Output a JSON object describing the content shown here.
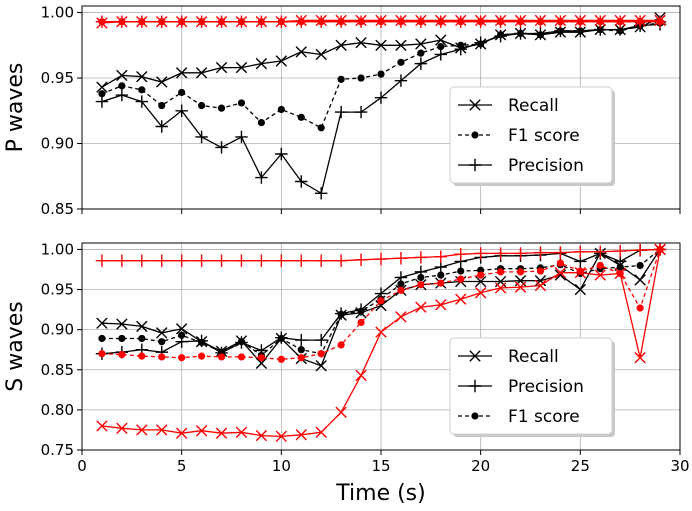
{
  "chart_data": [
    {
      "type": "line",
      "panel": "top",
      "ylabel": "P waves",
      "xlabel": "",
      "xlim": [
        0,
        30
      ],
      "ylim": [
        0.85,
        1.005
      ],
      "xticks": [
        0,
        5,
        10,
        15,
        20,
        25,
        30
      ],
      "xtick_labels_visible": false,
      "yticks": [
        0.85,
        0.9,
        0.95,
        1.0
      ],
      "ytick_labels": [
        "0.85",
        "0.90",
        "0.95",
        "1.00"
      ],
      "grid": true,
      "legend_position": "center-right",
      "legend": [
        {
          "label": "Recall",
          "marker": "x",
          "dash": "solid"
        },
        {
          "label": "F1 score",
          "marker": "dot",
          "dash": "dashed"
        },
        {
          "label": "Precision",
          "marker": "plus",
          "dash": "solid"
        }
      ],
      "x": [
        1,
        2,
        3,
        4,
        5,
        6,
        7,
        8,
        9,
        10,
        11,
        12,
        13,
        14,
        15,
        16,
        17,
        18,
        19,
        20,
        21,
        22,
        23,
        24,
        25,
        26,
        27,
        28,
        29
      ],
      "series": [
        {
          "name": "Recall",
          "color": "#000000",
          "marker": "x",
          "dash": "solid",
          "values": [
            0.943,
            0.952,
            0.951,
            0.947,
            0.954,
            0.954,
            0.958,
            0.958,
            0.961,
            0.963,
            0.97,
            0.968,
            0.975,
            0.977,
            0.975,
            0.975,
            0.976,
            0.979,
            0.973,
            0.976,
            0.983,
            0.984,
            0.983,
            0.985,
            0.985,
            0.987,
            0.987,
            0.989,
            0.996
          ]
        },
        {
          "name": "F1 score",
          "color": "#000000",
          "marker": "dot",
          "dash": "dashed",
          "values": [
            0.938,
            0.944,
            0.941,
            0.929,
            0.939,
            0.929,
            0.927,
            0.931,
            0.916,
            0.926,
            0.92,
            0.912,
            0.949,
            0.95,
            0.953,
            0.962,
            0.969,
            0.974,
            0.975,
            0.976,
            0.983,
            0.984,
            0.983,
            0.986,
            0.986,
            0.987,
            0.986,
            0.99,
            0.992
          ]
        },
        {
          "name": "Precision",
          "color": "#000000",
          "marker": "plus",
          "dash": "solid",
          "values": [
            0.932,
            0.937,
            0.932,
            0.913,
            0.925,
            0.905,
            0.897,
            0.905,
            0.874,
            0.892,
            0.871,
            0.862,
            0.924,
            0.924,
            0.935,
            0.948,
            0.961,
            0.968,
            0.972,
            0.977,
            0.982,
            0.984,
            0.984,
            0.986,
            0.986,
            0.987,
            0.987,
            0.99,
            0.991
          ]
        },
        {
          "name": "Recall (red)",
          "color": "#ff0000",
          "marker": "x",
          "dash": "solid",
          "values": [
            0.992,
            0.993,
            0.993,
            0.993,
            0.993,
            0.993,
            0.993,
            0.993,
            0.993,
            0.993,
            0.994,
            0.994,
            0.994,
            0.994,
            0.994,
            0.994,
            0.994,
            0.994,
            0.994,
            0.994,
            0.994,
            0.994,
            0.994,
            0.994,
            0.994,
            0.994,
            0.994,
            0.994,
            0.994
          ]
        },
        {
          "name": "F1 score (red)",
          "color": "#ff0000",
          "marker": "dot",
          "dash": "dashed",
          "values": [
            0.993,
            0.993,
            0.993,
            0.993,
            0.993,
            0.993,
            0.993,
            0.993,
            0.993,
            0.993,
            0.993,
            0.993,
            0.993,
            0.993,
            0.993,
            0.993,
            0.993,
            0.993,
            0.993,
            0.993,
            0.993,
            0.993,
            0.993,
            0.993,
            0.993,
            0.993,
            0.993,
            0.993,
            0.993
          ]
        },
        {
          "name": "Precision (red)",
          "color": "#ff0000",
          "marker": "plus",
          "dash": "solid",
          "values": [
            0.993,
            0.993,
            0.993,
            0.993,
            0.993,
            0.993,
            0.993,
            0.993,
            0.993,
            0.993,
            0.993,
            0.993,
            0.993,
            0.993,
            0.993,
            0.993,
            0.993,
            0.993,
            0.993,
            0.993,
            0.993,
            0.993,
            0.993,
            0.993,
            0.993,
            0.993,
            0.993,
            0.993,
            0.993
          ]
        }
      ]
    },
    {
      "type": "line",
      "panel": "bottom",
      "ylabel": "S waves",
      "xlabel": "Time (s)",
      "xlim": [
        0,
        30
      ],
      "ylim": [
        0.75,
        1.008
      ],
      "xticks": [
        0,
        5,
        10,
        15,
        20,
        25,
        30
      ],
      "xtick_labels": [
        "0",
        "5",
        "10",
        "15",
        "20",
        "25",
        "30"
      ],
      "xtick_labels_visible": true,
      "yticks": [
        0.75,
        0.8,
        0.85,
        0.9,
        0.95,
        1.0
      ],
      "ytick_labels": [
        "0.75",
        "0.80",
        "0.85",
        "0.90",
        "0.95",
        "1.00"
      ],
      "grid": true,
      "legend_position": "lower-right",
      "legend": [
        {
          "label": "Recall",
          "marker": "x",
          "dash": "solid"
        },
        {
          "label": "Precision",
          "marker": "plus",
          "dash": "solid"
        },
        {
          "label": "F1 score",
          "marker": "dot",
          "dash": "dashed"
        }
      ],
      "x": [
        1,
        2,
        3,
        4,
        5,
        6,
        7,
        8,
        9,
        10,
        11,
        12,
        13,
        14,
        15,
        16,
        17,
        18,
        19,
        20,
        21,
        22,
        23,
        24,
        25,
        26,
        27,
        28,
        29
      ],
      "series": [
        {
          "name": "Recall",
          "color": "#000000",
          "marker": "x",
          "dash": "solid",
          "values": [
            0.908,
            0.907,
            0.904,
            0.896,
            0.901,
            0.885,
            0.873,
            0.886,
            0.858,
            0.889,
            0.864,
            0.855,
            0.918,
            0.921,
            0.93,
            0.949,
            0.956,
            0.958,
            0.96,
            0.96,
            0.96,
            0.961,
            0.961,
            0.968,
            0.95,
            0.995,
            0.98,
            0.962,
            1.0
          ]
        },
        {
          "name": "Precision",
          "color": "#000000",
          "marker": "plus",
          "dash": "solid",
          "values": [
            0.87,
            0.872,
            0.875,
            0.872,
            0.885,
            0.886,
            0.871,
            0.884,
            0.874,
            0.89,
            0.887,
            0.887,
            0.92,
            0.925,
            0.945,
            0.965,
            0.972,
            0.978,
            0.985,
            0.99,
            0.992,
            0.992,
            0.993,
            0.995,
            0.985,
            0.995,
            0.985,
            0.999,
            1.0
          ]
        },
        {
          "name": "F1 score",
          "color": "#000000",
          "marker": "dot",
          "dash": "dashed",
          "values": [
            0.889,
            0.889,
            0.889,
            0.885,
            0.893,
            0.884,
            0.872,
            0.885,
            0.868,
            0.889,
            0.875,
            0.87,
            0.919,
            0.923,
            0.938,
            0.957,
            0.965,
            0.968,
            0.973,
            0.974,
            0.976,
            0.976,
            0.977,
            0.981,
            0.97,
            0.976,
            0.978,
            0.98,
            1.0
          ]
        },
        {
          "name": "Recall (red)",
          "color": "#ff0000",
          "marker": "x",
          "dash": "solid",
          "values": [
            0.78,
            0.777,
            0.775,
            0.775,
            0.771,
            0.774,
            0.771,
            0.772,
            0.768,
            0.767,
            0.769,
            0.772,
            0.797,
            0.843,
            0.897,
            0.916,
            0.928,
            0.931,
            0.938,
            0.946,
            0.952,
            0.953,
            0.955,
            0.971,
            0.971,
            0.968,
            0.97,
            0.865,
            1.0
          ]
        },
        {
          "name": "Precision (red)",
          "color": "#ff0000",
          "marker": "plus",
          "dash": "solid",
          "values": [
            0.986,
            0.986,
            0.986,
            0.986,
            0.986,
            0.986,
            0.986,
            0.986,
            0.986,
            0.986,
            0.986,
            0.986,
            0.986,
            0.987,
            0.988,
            0.989,
            0.99,
            0.991,
            0.994,
            0.995,
            0.995,
            0.995,
            0.996,
            0.996,
            0.997,
            0.997,
            0.998,
            0.999,
            1.0
          ]
        },
        {
          "name": "F1 score (red)",
          "color": "#ff0000",
          "marker": "dot",
          "dash": "dashed",
          "values": [
            0.87,
            0.869,
            0.867,
            0.866,
            0.865,
            0.867,
            0.866,
            0.866,
            0.865,
            0.863,
            0.865,
            0.87,
            0.881,
            0.909,
            0.936,
            0.949,
            0.956,
            0.958,
            0.963,
            0.968,
            0.972,
            0.972,
            0.973,
            0.983,
            0.973,
            0.98,
            0.97,
            0.927,
            1.0
          ]
        }
      ]
    }
  ]
}
